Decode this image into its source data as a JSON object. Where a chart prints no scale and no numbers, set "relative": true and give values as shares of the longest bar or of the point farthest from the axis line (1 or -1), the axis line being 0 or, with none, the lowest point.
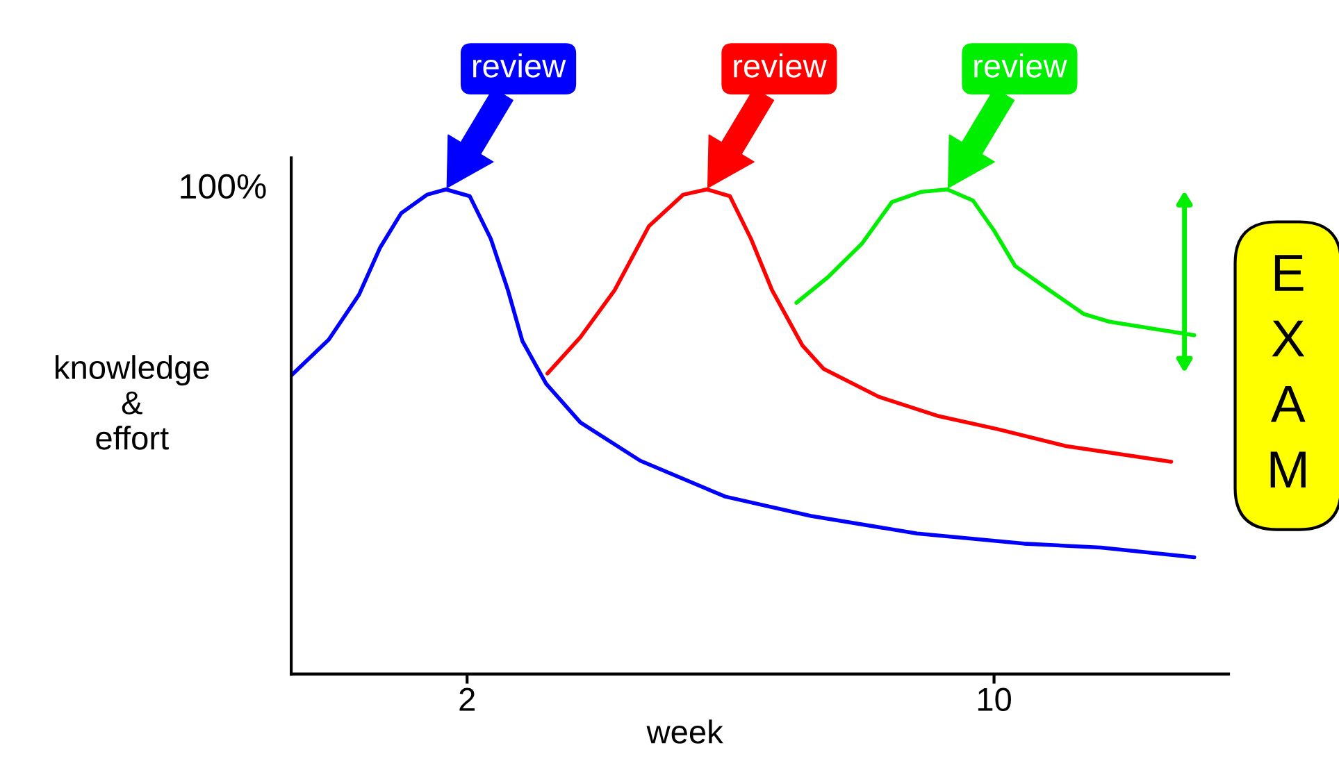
{
  "chart_data": {
    "type": "line",
    "relative": true,
    "xlabel": "week",
    "ylabel": "knowledge\n&\neffort",
    "xlim": [
      -0.67,
      13.56
    ],
    "xticks": [
      2,
      10
    ],
    "grid": false,
    "legend": false,
    "marker": "none",
    "line_style": "solid",
    "series": [
      {
        "color": "#0000ff",
        "x": [
          -0.67,
          -0.1,
          0.36,
          0.68,
          1.0,
          1.39,
          1.68,
          2.04,
          2.36,
          2.62,
          2.84,
          3.2,
          3.72,
          4.63,
          5.92,
          7.22,
          8.83,
          10.45,
          11.62,
          13.04
        ],
        "values": [
          0.616,
          0.69,
          0.783,
          0.88,
          0.951,
          0.989,
          1.0,
          0.986,
          0.898,
          0.792,
          0.687,
          0.599,
          0.519,
          0.44,
          0.366,
          0.326,
          0.29,
          0.269,
          0.261,
          0.241
        ]
      },
      {
        "color": "#ff0000",
        "x": [
          3.22,
          3.72,
          4.24,
          4.76,
          5.28,
          5.64,
          5.99,
          6.31,
          6.63,
          7.09,
          7.41,
          8.25,
          9.16,
          10.06,
          11.1,
          12.69
        ],
        "values": [
          0.62,
          0.695,
          0.792,
          0.924,
          0.989,
          1.0,
          0.986,
          0.898,
          0.792,
          0.678,
          0.63,
          0.572,
          0.532,
          0.505,
          0.47,
          0.438
        ]
      },
      {
        "color": "#00ee00",
        "x": [
          7.0,
          7.48,
          8.0,
          8.45,
          8.9,
          9.29,
          9.68,
          10.0,
          10.32,
          10.84,
          11.36,
          11.75,
          12.39,
          13.04
        ],
        "values": [
          0.766,
          0.819,
          0.889,
          0.974,
          0.995,
          1.0,
          0.977,
          0.915,
          0.842,
          0.792,
          0.743,
          0.727,
          0.713,
          0.699
        ]
      }
    ],
    "annotations": [
      "100%",
      "review",
      "review",
      "review",
      "EXAM"
    ]
  }
}
